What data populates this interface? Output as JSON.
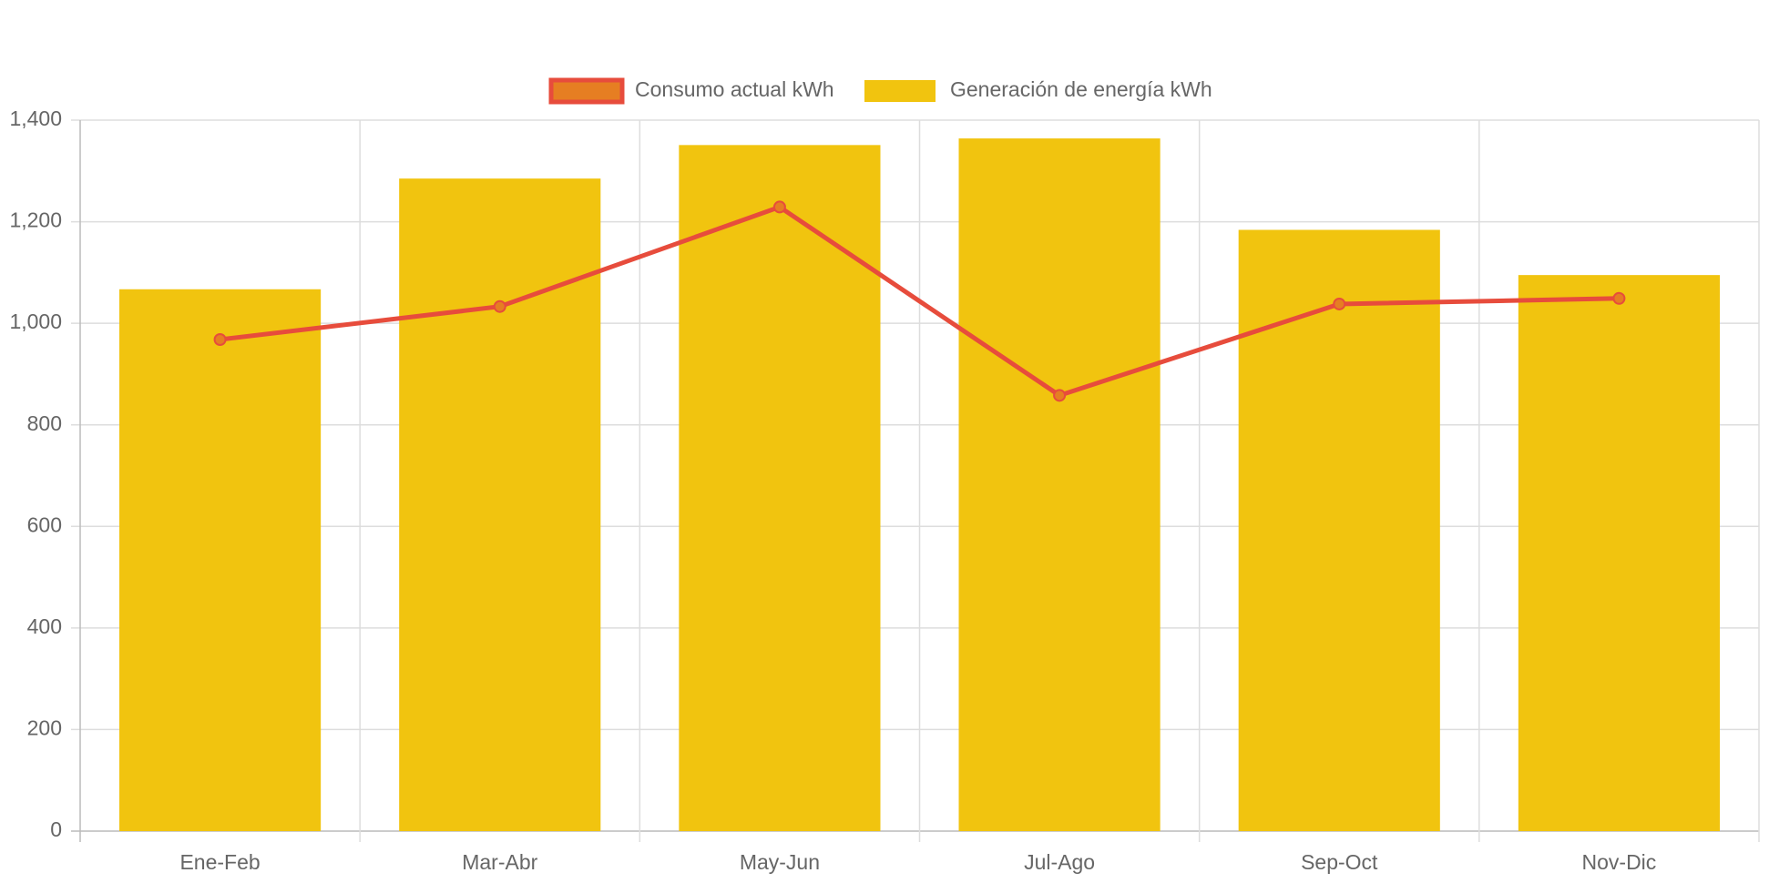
{
  "chart_data": {
    "type": "bar",
    "categories": [
      "Ene-Feb",
      "Mar-Abr",
      "May-Jun",
      "Jul-Ago",
      "Sep-Oct",
      "Nov-Dic"
    ],
    "series": [
      {
        "name": "Consumo actual kWh",
        "type": "line",
        "color": "#e74c3c",
        "fill": "#e67e22",
        "values": [
          968,
          1033,
          1229,
          858,
          1038,
          1049
        ]
      },
      {
        "name": "Generación de energía kWh",
        "type": "bar",
        "color": "#f1c40f",
        "values": [
          1067,
          1285,
          1351,
          1364,
          1184,
          1095
        ]
      }
    ],
    "ylim": [
      0,
      1400
    ],
    "yticks": [
      0,
      200,
      400,
      600,
      800,
      {
        "value": 1000,
        "label": "1,000"
      },
      {
        "value": 1200,
        "label": "1,200"
      },
      {
        "value": 1400,
        "label": "1,400"
      }
    ],
    "grid": true,
    "legend": "top"
  }
}
